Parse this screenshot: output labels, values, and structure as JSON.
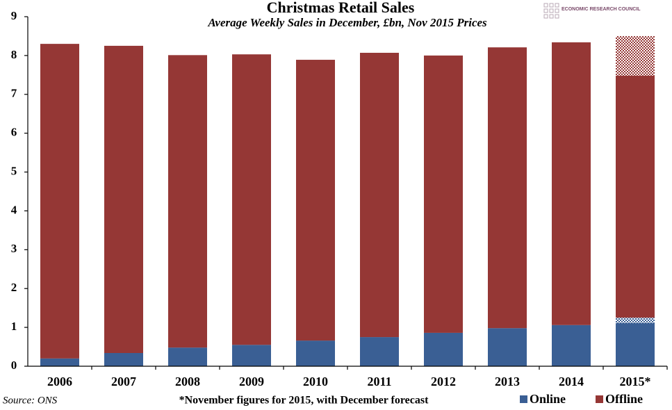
{
  "chart_data": {
    "type": "stacked_bar",
    "title": "Christmas Retail Sales",
    "subtitle": "Average Weekly Sales in December, £bn, Nov 2015 Prices",
    "source": "Source: ONS",
    "footnote": "*November figures for 2015, with December forecast",
    "logo": "ECONOMIC RESEARCH COUNCIL",
    "categories": [
      "2006",
      "2007",
      "2008",
      "2009",
      "2010",
      "2011",
      "2012",
      "2013",
      "2014",
      "2015*"
    ],
    "series": [
      {
        "name": "Online",
        "color": "#3a5f94",
        "values": [
          0.2,
          0.34,
          0.48,
          0.55,
          0.66,
          0.75,
          0.86,
          0.98,
          1.06,
          1.11
        ],
        "forecast_values": [
          null,
          null,
          null,
          null,
          null,
          null,
          null,
          null,
          null,
          0.14
        ]
      },
      {
        "name": "Offline",
        "color": "#953735",
        "values": [
          8.1,
          7.91,
          7.53,
          7.48,
          7.23,
          7.32,
          7.14,
          7.23,
          7.28,
          6.23
        ],
        "forecast_values": [
          null,
          null,
          null,
          null,
          null,
          null,
          null,
          null,
          null,
          1.02
        ]
      }
    ],
    "ylim": [
      0,
      9
    ],
    "yticks": [
      0,
      1,
      2,
      3,
      4,
      5,
      6,
      7,
      8,
      9
    ],
    "grid": false,
    "legend": "bottom-right"
  }
}
